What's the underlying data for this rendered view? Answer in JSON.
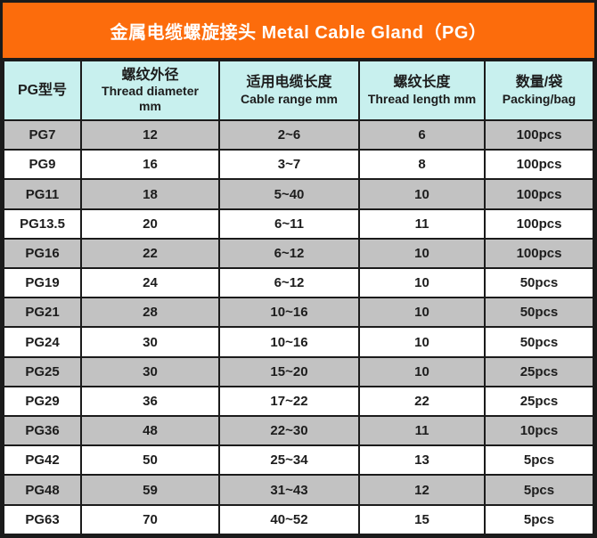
{
  "title": "金属电缆螺旋接头 Metal Cable Gland（PG）",
  "colors": {
    "title_bg": "#FC6C0C",
    "title_text": "#FFFFFF",
    "header_bg": "#C8F0EE",
    "row_stripe_bg": "#C2C2C2",
    "row_bg": "#FFFFFF",
    "border": "#1B1B1B",
    "text": "#1D1D1D"
  },
  "table": {
    "headers": [
      {
        "lines": [
          "PG型号"
        ]
      },
      {
        "lines": [
          "螺纹外径",
          "Thread diameter",
          "mm"
        ]
      },
      {
        "lines": [
          "适用电缆长度",
          "Cable range mm"
        ]
      },
      {
        "lines": [
          "螺纹长度",
          "Thread length mm"
        ]
      },
      {
        "lines": [
          "数量/袋",
          "Packing/bag"
        ]
      }
    ],
    "rows": [
      [
        "PG7",
        "12",
        "2~6",
        "6",
        "100pcs"
      ],
      [
        "PG9",
        "16",
        "3~7",
        "8",
        "100pcs"
      ],
      [
        "PG11",
        "18",
        "5~40",
        "10",
        "100pcs"
      ],
      [
        "PG13.5",
        "20",
        "6~11",
        "11",
        "100pcs"
      ],
      [
        "PG16",
        "22",
        "6~12",
        "10",
        "100pcs"
      ],
      [
        "PG19",
        "24",
        "6~12",
        "10",
        "50pcs"
      ],
      [
        "PG21",
        "28",
        "10~16",
        "10",
        "50pcs"
      ],
      [
        "PG24",
        "30",
        "10~16",
        "10",
        "50pcs"
      ],
      [
        "PG25",
        "30",
        "15~20",
        "10",
        "25pcs"
      ],
      [
        "PG29",
        "36",
        "17~22",
        "22",
        "25pcs"
      ],
      [
        "PG36",
        "48",
        "22~30",
        "11",
        "10pcs"
      ],
      [
        "PG42",
        "50",
        "25~34",
        "13",
        "5pcs"
      ],
      [
        "PG48",
        "59",
        "31~43",
        "12",
        "5pcs"
      ],
      [
        "PG63",
        "70",
        "40~52",
        "15",
        "5pcs"
      ]
    ]
  },
  "chart_data": {
    "type": "table",
    "title": "金属电缆螺旋接头 Metal Cable Gland（PG）",
    "columns": [
      "PG型号",
      "螺纹外径 Thread diameter mm",
      "适用电缆长度 Cable range mm",
      "螺纹长度 Thread length mm",
      "数量/袋 Packing/bag"
    ],
    "rows": [
      [
        "PG7",
        12,
        "2~6",
        6,
        "100pcs"
      ],
      [
        "PG9",
        16,
        "3~7",
        8,
        "100pcs"
      ],
      [
        "PG11",
        18,
        "5~40",
        10,
        "100pcs"
      ],
      [
        "PG13.5",
        20,
        "6~11",
        11,
        "100pcs"
      ],
      [
        "PG16",
        22,
        "6~12",
        10,
        "100pcs"
      ],
      [
        "PG19",
        24,
        "6~12",
        10,
        "50pcs"
      ],
      [
        "PG21",
        28,
        "10~16",
        10,
        "50pcs"
      ],
      [
        "PG24",
        30,
        "10~16",
        10,
        "50pcs"
      ],
      [
        "PG25",
        30,
        "15~20",
        10,
        "25pcs"
      ],
      [
        "PG29",
        36,
        "17~22",
        22,
        "25pcs"
      ],
      [
        "PG36",
        48,
        "22~30",
        11,
        "10pcs"
      ],
      [
        "PG42",
        50,
        "25~34",
        13,
        "5pcs"
      ],
      [
        "PG48",
        59,
        "31~43",
        12,
        "5pcs"
      ],
      [
        "PG63",
        70,
        "40~52",
        15,
        "5pcs"
      ]
    ]
  }
}
